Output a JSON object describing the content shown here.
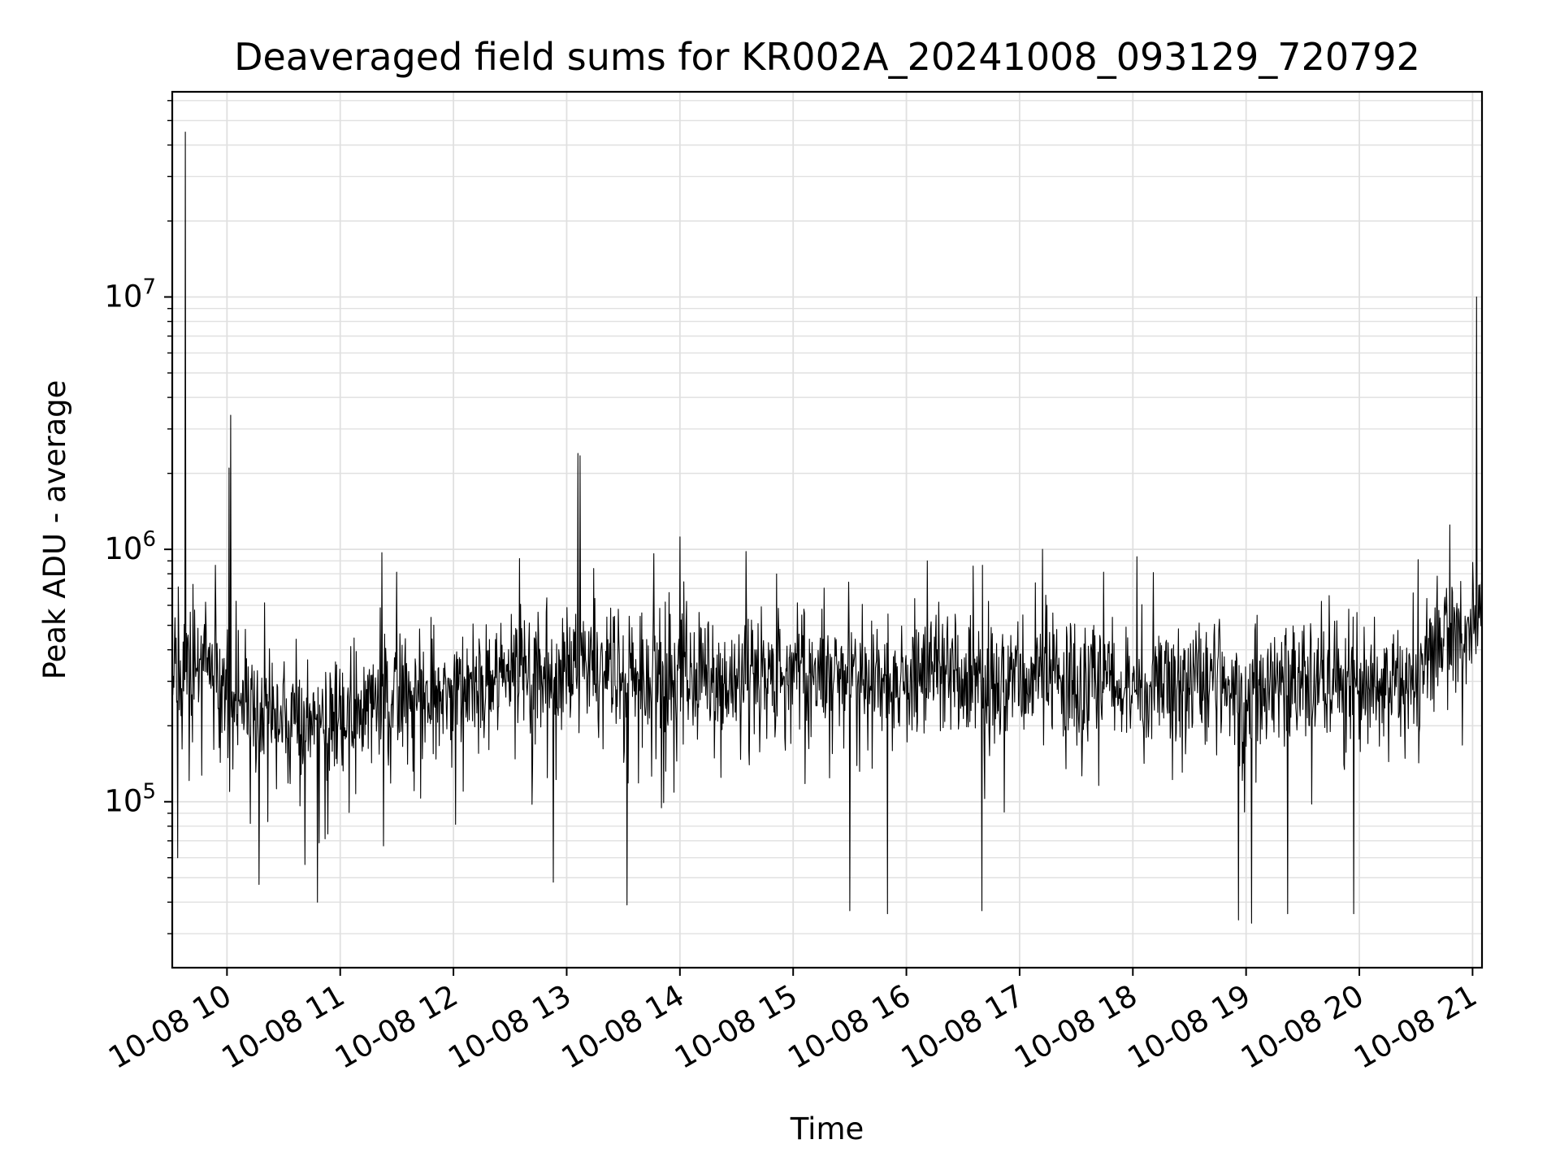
{
  "chart_data": {
    "type": "line",
    "title": "Deaveraged field sums for KR002A_20241008_093129_720792",
    "xlabel": "Time",
    "ylabel": "Peak ADU - average",
    "yscale": "log",
    "grid": true,
    "legend": "none",
    "line_color": "#000000",
    "grid_color": "#e0e0e0",
    "x_range": [
      "2024-10-08 09:31",
      "2024-10-08 21:05"
    ],
    "y_range": [
      22000,
      65000000
    ],
    "x_ticks": [
      {
        "value": "2024-10-08 10:00",
        "label": "10-08 10"
      },
      {
        "value": "2024-10-08 11:00",
        "label": "10-08 11"
      },
      {
        "value": "2024-10-08 12:00",
        "label": "10-08 12"
      },
      {
        "value": "2024-10-08 13:00",
        "label": "10-08 13"
      },
      {
        "value": "2024-10-08 14:00",
        "label": "10-08 14"
      },
      {
        "value": "2024-10-08 15:00",
        "label": "10-08 15"
      },
      {
        "value": "2024-10-08 16:00",
        "label": "10-08 16"
      },
      {
        "value": "2024-10-08 17:00",
        "label": "10-08 17"
      },
      {
        "value": "2024-10-08 18:00",
        "label": "10-08 18"
      },
      {
        "value": "2024-10-08 19:00",
        "label": "10-08 19"
      },
      {
        "value": "2024-10-08 20:00",
        "label": "10-08 20"
      },
      {
        "value": "2024-10-08 21:00",
        "label": "10-08 21"
      }
    ],
    "y_ticks": [
      {
        "value": 100000,
        "base": "10",
        "exp": "5"
      },
      {
        "value": 1000000,
        "base": "10",
        "exp": "6"
      },
      {
        "value": 10000000,
        "base": "10",
        "exp": "7"
      }
    ],
    "series": [
      {
        "x": [
          "2024-10-08 09:31",
          "2024-10-08 09:40",
          "2024-10-08 09:55",
          "2024-10-08 10:10",
          "2024-10-08 10:30",
          "2024-10-08 10:50",
          "2024-10-08 11:10",
          "2024-10-08 11:30",
          "2024-10-08 11:50",
          "2024-10-08 12:10",
          "2024-10-08 12:30",
          "2024-10-08 12:50",
          "2024-10-08 13:10",
          "2024-10-08 13:30",
          "2024-10-08 13:50",
          "2024-10-08 14:10",
          "2024-10-08 14:30",
          "2024-10-08 14:50",
          "2024-10-08 15:10",
          "2024-10-08 15:30",
          "2024-10-08 15:50",
          "2024-10-08 16:10",
          "2024-10-08 16:30",
          "2024-10-08 16:50",
          "2024-10-08 17:10",
          "2024-10-08 17:30",
          "2024-10-08 17:50",
          "2024-10-08 18:10",
          "2024-10-08 18:30",
          "2024-10-08 18:50",
          "2024-10-08 19:10",
          "2024-10-08 19:30",
          "2024-10-08 19:50",
          "2024-10-08 20:10",
          "2024-10-08 20:30",
          "2024-10-08 20:45",
          "2024-10-08 20:55",
          "2024-10-08 21:05"
        ],
        "y": [
          300000,
          350000,
          320000,
          250000,
          220000,
          210000,
          240000,
          270000,
          280000,
          300000,
          310000,
          330000,
          320000,
          310000,
          320000,
          330000,
          310000,
          340000,
          320000,
          310000,
          300000,
          310000,
          320000,
          300000,
          310000,
          300000,
          310000,
          290000,
          300000,
          290000,
          300000,
          290000,
          300000,
          290000,
          310000,
          550000,
          480000,
          500000
        ]
      }
    ],
    "spikes": [
      {
        "x": "2024-10-08 09:38",
        "y": 45000000
      },
      {
        "x": "2024-10-08 10:02",
        "y": 3400000
      },
      {
        "x": "2024-10-08 10:01",
        "y": 2100000
      },
      {
        "x": "2024-10-08 12:35",
        "y": 920000
      },
      {
        "x": "2024-10-08 13:06",
        "y": 2400000
      },
      {
        "x": "2024-10-08 13:07",
        "y": 2350000
      },
      {
        "x": "2024-10-08 14:00",
        "y": 1120000
      },
      {
        "x": "2024-10-08 11:22",
        "y": 970000
      },
      {
        "x": "2024-10-08 16:11",
        "y": 900000
      },
      {
        "x": "2024-10-08 17:12",
        "y": 1000000
      },
      {
        "x": "2024-10-08 20:48",
        "y": 1250000
      },
      {
        "x": "2024-10-08 21:02",
        "y": 10000000
      }
    ],
    "dips": [
      {
        "x": "2024-10-08 09:34",
        "y": 60000
      },
      {
        "x": "2024-10-08 10:17",
        "y": 47000
      },
      {
        "x": "2024-10-08 10:48",
        "y": 40000
      },
      {
        "x": "2024-10-08 12:53",
        "y": 48000
      },
      {
        "x": "2024-10-08 13:32",
        "y": 39000
      },
      {
        "x": "2024-10-08 15:30",
        "y": 37000
      },
      {
        "x": "2024-10-08 15:50",
        "y": 36000
      },
      {
        "x": "2024-10-08 16:40",
        "y": 37000
      },
      {
        "x": "2024-10-08 18:56",
        "y": 34000
      },
      {
        "x": "2024-10-08 19:03",
        "y": 33000
      },
      {
        "x": "2024-10-08 19:22",
        "y": 36000
      },
      {
        "x": "2024-10-08 19:57",
        "y": 36000
      }
    ]
  }
}
